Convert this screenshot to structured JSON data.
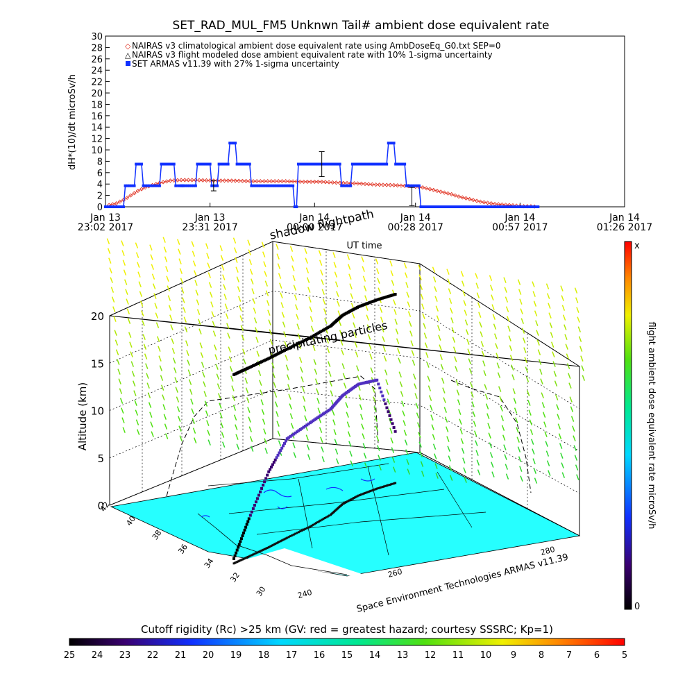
{
  "chart_data": [
    {
      "type": "line",
      "title": "SET_RAD_MUL_FM5 Unknwn Tail#  ambient dose equivalent rate",
      "ylabel": "dH*(10)/dt microSv/h",
      "xlabel": "UT time",
      "ylim": [
        0,
        30
      ],
      "yticks": [
        0,
        2,
        4,
        6,
        8,
        10,
        12,
        14,
        16,
        18,
        20,
        22,
        24,
        26,
        28,
        30
      ],
      "x_ticks": [
        {
          "date": "Jan 13",
          "time": "23:02 2017"
        },
        {
          "date": "Jan 13",
          "time": "23:31 2017"
        },
        {
          "date": "Jan 14",
          "time": "00:00 2017"
        },
        {
          "date": "Jan 14",
          "time": "00:28 2017"
        },
        {
          "date": "Jan 14",
          "time": "00:57 2017"
        },
        {
          "date": "Jan 14",
          "time": "01:26 2017"
        }
      ],
      "xlim_minutes": [
        0,
        144
      ],
      "series": [
        {
          "name": "NAIRAS v3 climatological ambient dose equivalent rate using AmbDoseEq_G0.txt SEP=0",
          "color": "#e03020",
          "marker": "diamond",
          "x_minutes": [
            1,
            3,
            5,
            7,
            9,
            11,
            13,
            15,
            18,
            21,
            25,
            30,
            35,
            40,
            45,
            50,
            55,
            60,
            65,
            70,
            75,
            80,
            85,
            88,
            90,
            92,
            94,
            96,
            98,
            100,
            102,
            104,
            106,
            108,
            110,
            112,
            114,
            116,
            118,
            120
          ],
          "values": [
            0.3,
            0.6,
            1.2,
            2.0,
            2.8,
            3.4,
            3.8,
            4.2,
            4.6,
            4.7,
            4.7,
            4.6,
            4.6,
            4.5,
            4.5,
            4.5,
            4.4,
            4.4,
            4.2,
            4.1,
            3.9,
            3.8,
            3.6,
            3.4,
            3.1,
            2.8,
            2.5,
            2.2,
            1.8,
            1.5,
            1.2,
            0.9,
            0.7,
            0.5,
            0.4,
            0.3,
            0.2,
            0.1,
            0.1,
            0.0
          ]
        },
        {
          "name": "NAIRAS v3 flight modeled dose ambient equivalent rate with 10% 1-sigma uncertainty",
          "color": "#000000",
          "marker": "triangle",
          "x_minutes": [
            30,
            60,
            85
          ],
          "values": [
            3.7,
            7.5,
            1.8
          ],
          "errors": [
            0.9,
            2.2,
            1.6
          ]
        },
        {
          "name": "SET ARMAS v11.39 with 27% 1-sigma uncertainty",
          "color": "#1030ff",
          "marker": "square",
          "x_minutes": [
            0,
            5,
            5.5,
            8,
            8.5,
            10,
            10.5,
            15,
            15.5,
            19,
            19.5,
            21,
            21.5,
            25,
            25.5,
            29,
            29.5,
            31,
            31.5,
            34,
            34.5,
            36,
            36.5,
            40,
            40.5,
            52,
            52.5,
            53,
            53.5,
            56,
            56.5,
            65,
            65.5,
            68,
            68.5,
            72,
            72.5,
            78,
            78.5,
            80,
            80.5,
            83,
            83.5,
            87,
            87.5,
            120
          ],
          "values": [
            0,
            0,
            3.7,
            3.7,
            7.5,
            7.5,
            3.7,
            3.7,
            7.5,
            7.5,
            3.7,
            3.7,
            3.7,
            3.7,
            7.5,
            7.5,
            3.7,
            3.7,
            7.5,
            7.5,
            11.2,
            11.2,
            7.5,
            7.5,
            3.7,
            3.7,
            0,
            0,
            7.5,
            7.5,
            7.5,
            7.5,
            3.7,
            3.7,
            7.5,
            7.5,
            7.5,
            7.5,
            11.2,
            11.2,
            7.5,
            7.5,
            3.7,
            3.7,
            0,
            0
          ]
        }
      ]
    },
    {
      "type": "scatter",
      "title": "shadow flightpath",
      "zlabel": "Altitude (km)",
      "zlim": [
        0,
        20
      ],
      "zticks": [
        0,
        5,
        10,
        15,
        20
      ],
      "lat_ticks": [
        30,
        32,
        34,
        36,
        38,
        40,
        42
      ],
      "lon_ticks": [
        240,
        260,
        280
      ],
      "annotations": [
        "shadow flightpath",
        "precipitating particles",
        "Space Environment Technologies ARMAS v11.39"
      ],
      "colorbar": {
        "label": "flight ambient dose equivalent rate microSv/h",
        "max_label": "x",
        "min_label": "0"
      },
      "flight_track": {
        "lat": [
          34.0,
          34.5,
          35.2,
          36.0,
          37.0,
          38.2,
          39.5,
          40.5,
          41.3,
          42.0
        ],
        "lon": [
          241,
          244,
          248,
          252,
          257,
          262,
          266,
          270,
          274,
          278
        ],
        "altitude_km": [
          0.5,
          4.0,
          8.0,
          10.5,
          11.0,
          11.2,
          11.5,
          11.8,
          11.5,
          5.0
        ]
      }
    },
    {
      "type": "heatmap",
      "title": "Cutoff rigidity (Rc) >25 km (GV: red = greatest hazard; courtesy SSSRC; Kp=1)",
      "ticks": [
        "25",
        "24",
        "23",
        "22",
        "21",
        "20",
        "19",
        "18",
        "17",
        "16",
        "15",
        "14",
        "13",
        "12",
        "11",
        "10",
        "9",
        "8",
        "7",
        "6",
        "5"
      ]
    }
  ]
}
